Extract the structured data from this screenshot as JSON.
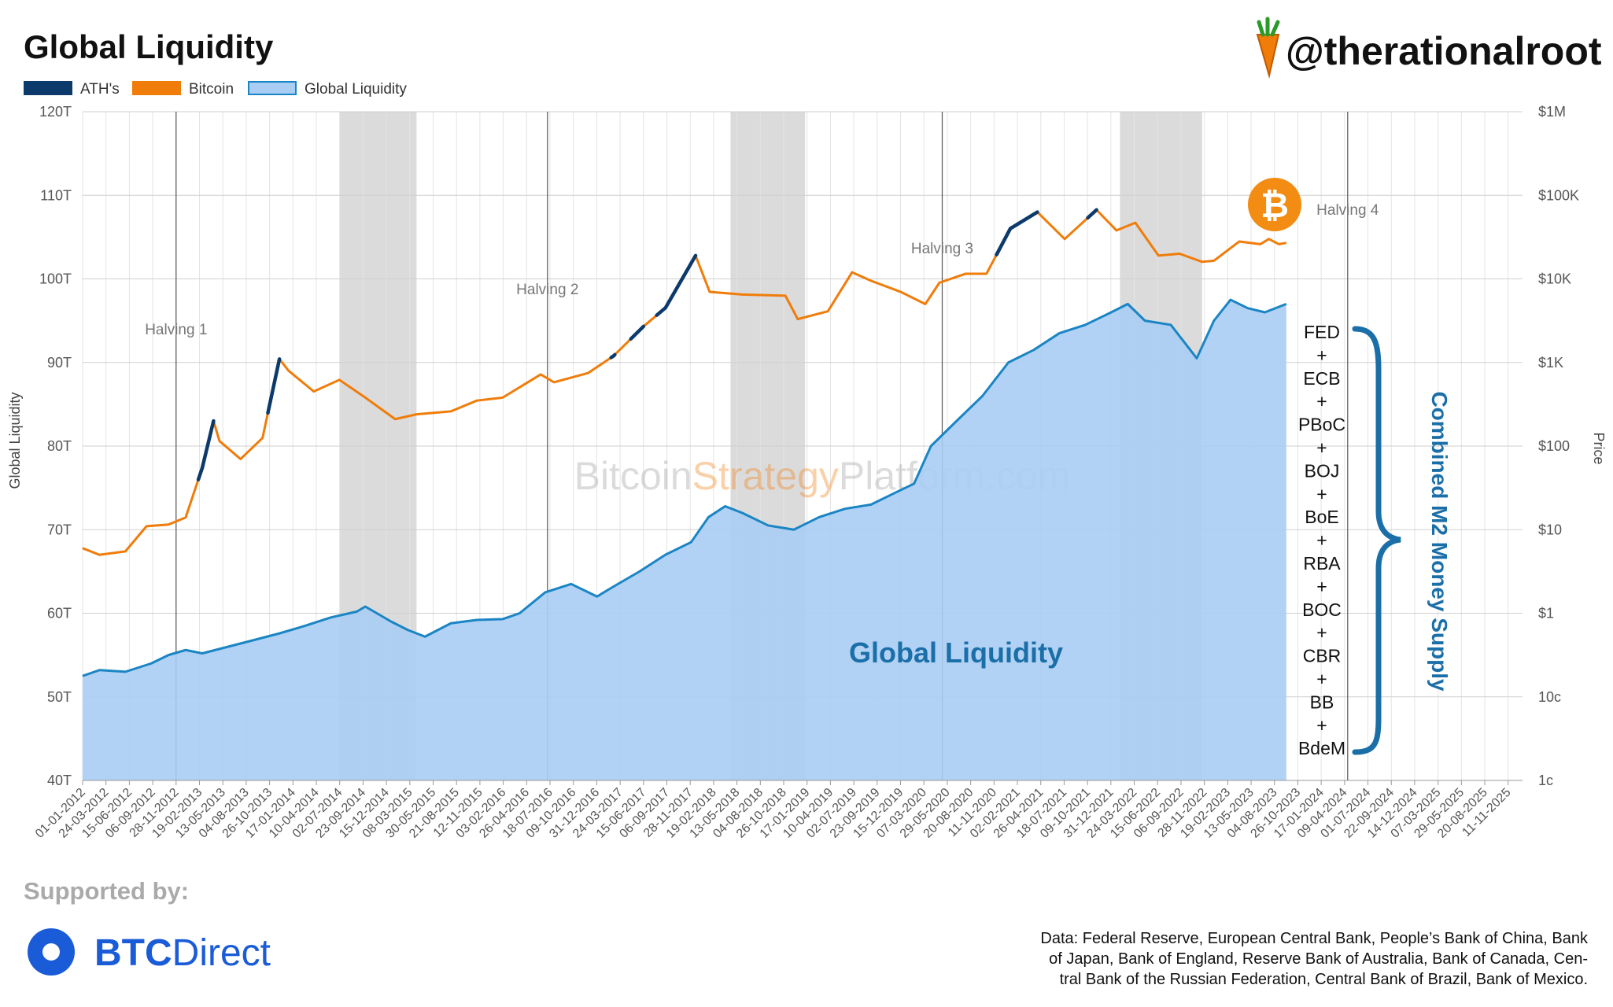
{
  "header": {
    "title": "Global Liquidity",
    "brand_handle": "@therationalroot"
  },
  "legend": {
    "items": [
      {
        "label": "ATH's",
        "color": "#0b3a6b"
      },
      {
        "label": "Bitcoin",
        "color": "#f07c0a"
      },
      {
        "label": "Global Liquidity",
        "color": "#a9cdf3"
      }
    ]
  },
  "watermark": {
    "part1": "Bitcoin",
    "part2": "Strategy",
    "part3": "Platform.com"
  },
  "annotations": {
    "global_liquidity_label": "Global Liquidity",
    "central_banks": [
      "FED",
      "+",
      "ECB",
      "+",
      "PBoC",
      "+",
      "BOJ",
      "+",
      "BoE",
      "+",
      "RBA",
      "+",
      "BOC",
      "+",
      "CBR",
      "+",
      "BB",
      "+",
      "BdeM"
    ],
    "m2_label": "Combined M2 Money Supply"
  },
  "footer": {
    "supported_by": "Supported by:",
    "sponsor_bold": "BTC",
    "sponsor_light": "Direct",
    "source_lines": [
      "Data: Federal Reserve, European Central Bank, People’s Bank of China, Bank",
      "of Japan, Bank of England, Reserve Bank of Australia, Bank of Canada, Cen-",
      "tral Bank of the Russian Federation, Central Bank of Brazil, Bank of Mexico."
    ]
  },
  "chart_data": {
    "type": "line",
    "ylabel": "Global Liquidity",
    "y2label": "Price",
    "ylim": [
      40,
      120
    ],
    "y_ticks": [
      "40T",
      "50T",
      "60T",
      "70T",
      "80T",
      "90T",
      "100T",
      "110T",
      "120T"
    ],
    "y2_ticks": [
      "1c",
      "10c",
      "$1",
      "$10",
      "$100",
      "$1K",
      "$10K",
      "$100K",
      "$1M"
    ],
    "y2_log_range": [
      0.01,
      1000000
    ],
    "x_range": [
      "2012-01-01",
      "2026-01-01"
    ],
    "x_ticks": [
      "01-01-2012",
      "24-03-2012",
      "15-06-2012",
      "06-09-2012",
      "28-11-2012",
      "19-02-2013",
      "13-05-2013",
      "04-08-2013",
      "26-10-2013",
      "17-01-2014",
      "10-04-2014",
      "02-07-2014",
      "23-09-2014",
      "15-12-2014",
      "08-03-2015",
      "30-05-2015",
      "21-08-2015",
      "12-11-2015",
      "03-02-2016",
      "26-04-2016",
      "18-07-2016",
      "09-10-2016",
      "31-12-2016",
      "24-03-2017",
      "15-06-2017",
      "06-09-2017",
      "28-11-2017",
      "19-02-2018",
      "13-05-2018",
      "04-08-2018",
      "26-10-2018",
      "17-01-2019",
      "10-04-2019",
      "02-07-2019",
      "23-09-2019",
      "15-12-2019",
      "07-03-2020",
      "29-05-2020",
      "20-08-2020",
      "11-11-2020",
      "02-02-2021",
      "26-04-2021",
      "18-07-2021",
      "09-10-2021",
      "31-12-2021",
      "24-03-2022",
      "15-06-2022",
      "06-09-2022",
      "28-11-2022",
      "19-02-2023",
      "13-05-2023",
      "04-08-2023",
      "26-10-2023",
      "17-01-2024",
      "09-04-2024",
      "01-07-2024",
      "22-09-2024",
      "14-12-2024",
      "07-03-2025",
      "29-05-2025",
      "20-08-2025",
      "11-11-2025"
    ],
    "halvings": [
      {
        "label": "Halving 1",
        "date": "2012-11-28"
      },
      {
        "label": "Halving 2",
        "date": "2016-07-09"
      },
      {
        "label": "Halving 3",
        "date": "2020-05-11"
      },
      {
        "label": "Halving 4",
        "date": "2024-04-20"
      }
    ],
    "bear_markets": [
      {
        "start": "2014-07-01",
        "end": "2015-04-01"
      },
      {
        "start": "2018-04-20",
        "end": "2019-01-10"
      },
      {
        "start": "2022-02-01",
        "end": "2022-11-20"
      }
    ],
    "series": [
      {
        "name": "Global Liquidity",
        "unit": "T",
        "color": "#1b85c4",
        "fill": "#a9cdf3",
        "points": [
          [
            "2012-01-01",
            52.5
          ],
          [
            "2012-03-01",
            53.2
          ],
          [
            "2012-06-01",
            53.0
          ],
          [
            "2012-09-01",
            54.0
          ],
          [
            "2012-11-01",
            55.0
          ],
          [
            "2013-01-01",
            55.6
          ],
          [
            "2013-03-01",
            55.2
          ],
          [
            "2013-06-01",
            56.0
          ],
          [
            "2013-09-01",
            56.8
          ],
          [
            "2013-12-01",
            57.6
          ],
          [
            "2014-03-01",
            58.5
          ],
          [
            "2014-06-01",
            59.5
          ],
          [
            "2014-09-01",
            60.2
          ],
          [
            "2014-10-01",
            60.8
          ],
          [
            "2015-01-01",
            59.0
          ],
          [
            "2015-03-01",
            58.0
          ],
          [
            "2015-05-01",
            57.2
          ],
          [
            "2015-08-01",
            58.8
          ],
          [
            "2015-11-01",
            59.2
          ],
          [
            "2016-02-01",
            59.3
          ],
          [
            "2016-04-01",
            60.0
          ],
          [
            "2016-07-01",
            62.5
          ],
          [
            "2016-10-01",
            63.5
          ],
          [
            "2017-01-01",
            62.0
          ],
          [
            "2017-03-01",
            63.2
          ],
          [
            "2017-06-01",
            65.0
          ],
          [
            "2017-09-01",
            67.0
          ],
          [
            "2017-12-01",
            68.5
          ],
          [
            "2018-02-01",
            71.5
          ],
          [
            "2018-04-01",
            72.8
          ],
          [
            "2018-06-01",
            72.0
          ],
          [
            "2018-09-01",
            70.5
          ],
          [
            "2018-12-01",
            70.0
          ],
          [
            "2019-03-01",
            71.5
          ],
          [
            "2019-06-01",
            72.5
          ],
          [
            "2019-09-01",
            73.0
          ],
          [
            "2019-12-01",
            74.5
          ],
          [
            "2020-02-01",
            75.5
          ],
          [
            "2020-04-01",
            80.0
          ],
          [
            "2020-07-01",
            83.0
          ],
          [
            "2020-10-01",
            86.0
          ],
          [
            "2021-01-01",
            90.0
          ],
          [
            "2021-04-01",
            91.5
          ],
          [
            "2021-07-01",
            93.5
          ],
          [
            "2021-10-01",
            94.5
          ],
          [
            "2022-01-01",
            96.0
          ],
          [
            "2022-03-01",
            97.0
          ],
          [
            "2022-05-01",
            95.0
          ],
          [
            "2022-08-01",
            94.5
          ],
          [
            "2022-11-01",
            90.5
          ],
          [
            "2023-01-01",
            95.0
          ],
          [
            "2023-03-01",
            97.5
          ],
          [
            "2023-05-01",
            96.5
          ],
          [
            "2023-07-01",
            96.0
          ],
          [
            "2023-09-15",
            97.0
          ]
        ]
      },
      {
        "name": "Bitcoin",
        "unit": "USD",
        "color": "#f07c0a",
        "ath_color": "#0b3a6b",
        "points": [
          [
            "2012-01-01",
            6.0
          ],
          [
            "2012-03-01",
            5.0
          ],
          [
            "2012-06-01",
            5.5
          ],
          [
            "2012-08-15",
            11.0
          ],
          [
            "2012-11-01",
            11.5
          ],
          [
            "2013-01-01",
            14.0
          ],
          [
            "2013-03-01",
            55.0
          ],
          [
            "2013-04-10",
            200.0
          ],
          [
            "2013-05-01",
            115.0
          ],
          [
            "2013-07-15",
            70.0
          ],
          [
            "2013-10-01",
            125.0
          ],
          [
            "2013-11-30",
            1100.0
          ],
          [
            "2014-01-01",
            800.0
          ],
          [
            "2014-04-01",
            450.0
          ],
          [
            "2014-07-01",
            620.0
          ],
          [
            "2014-10-01",
            380.0
          ],
          [
            "2015-01-15",
            210.0
          ],
          [
            "2015-04-01",
            240.0
          ],
          [
            "2015-08-01",
            260.0
          ],
          [
            "2015-11-01",
            350.0
          ],
          [
            "2016-02-01",
            380.0
          ],
          [
            "2016-06-15",
            720.0
          ],
          [
            "2016-08-01",
            580.0
          ],
          [
            "2016-12-01",
            750.0
          ],
          [
            "2017-03-01",
            1200.0
          ],
          [
            "2017-06-15",
            2700.0
          ],
          [
            "2017-09-01",
            4500.0
          ],
          [
            "2017-12-17",
            19000.0
          ],
          [
            "2018-02-05",
            7000.0
          ],
          [
            "2018-06-01",
            6500.0
          ],
          [
            "2018-11-01",
            6300.0
          ],
          [
            "2018-12-15",
            3300.0
          ],
          [
            "2019-04-01",
            4100.0
          ],
          [
            "2019-06-26",
            12000.0
          ],
          [
            "2019-09-01",
            9500.0
          ],
          [
            "2019-12-15",
            7000.0
          ],
          [
            "2020-03-12",
            5000.0
          ],
          [
            "2020-05-01",
            9000.0
          ],
          [
            "2020-08-01",
            11500.0
          ],
          [
            "2020-10-15",
            11500.0
          ],
          [
            "2021-01-08",
            40000.0
          ],
          [
            "2021-04-14",
            63000.0
          ],
          [
            "2021-07-20",
            30000.0
          ],
          [
            "2021-11-10",
            67000.0
          ],
          [
            "2022-01-20",
            38000.0
          ],
          [
            "2022-03-28",
            47000.0
          ],
          [
            "2022-06-18",
            19000.0
          ],
          [
            "2022-09-01",
            20000.0
          ],
          [
            "2022-11-20",
            16000.0
          ],
          [
            "2023-01-01",
            16500.0
          ],
          [
            "2023-04-01",
            28000.0
          ],
          [
            "2023-06-15",
            26000.0
          ],
          [
            "2023-07-15",
            30000.0
          ],
          [
            "2023-08-20",
            26000.0
          ],
          [
            "2023-09-15",
            27000.0
          ]
        ]
      }
    ],
    "ath_segments": [
      [
        "2013-02-15",
        "2013-04-10"
      ],
      [
        "2013-10-20",
        "2013-11-30"
      ],
      [
        "2017-02-20",
        "2017-03-05"
      ],
      [
        "2017-05-01",
        "2017-06-15"
      ],
      [
        "2017-08-01",
        "2017-12-17"
      ],
      [
        "2020-11-20",
        "2021-04-14"
      ],
      [
        "2021-10-10",
        "2021-11-10"
      ]
    ]
  }
}
